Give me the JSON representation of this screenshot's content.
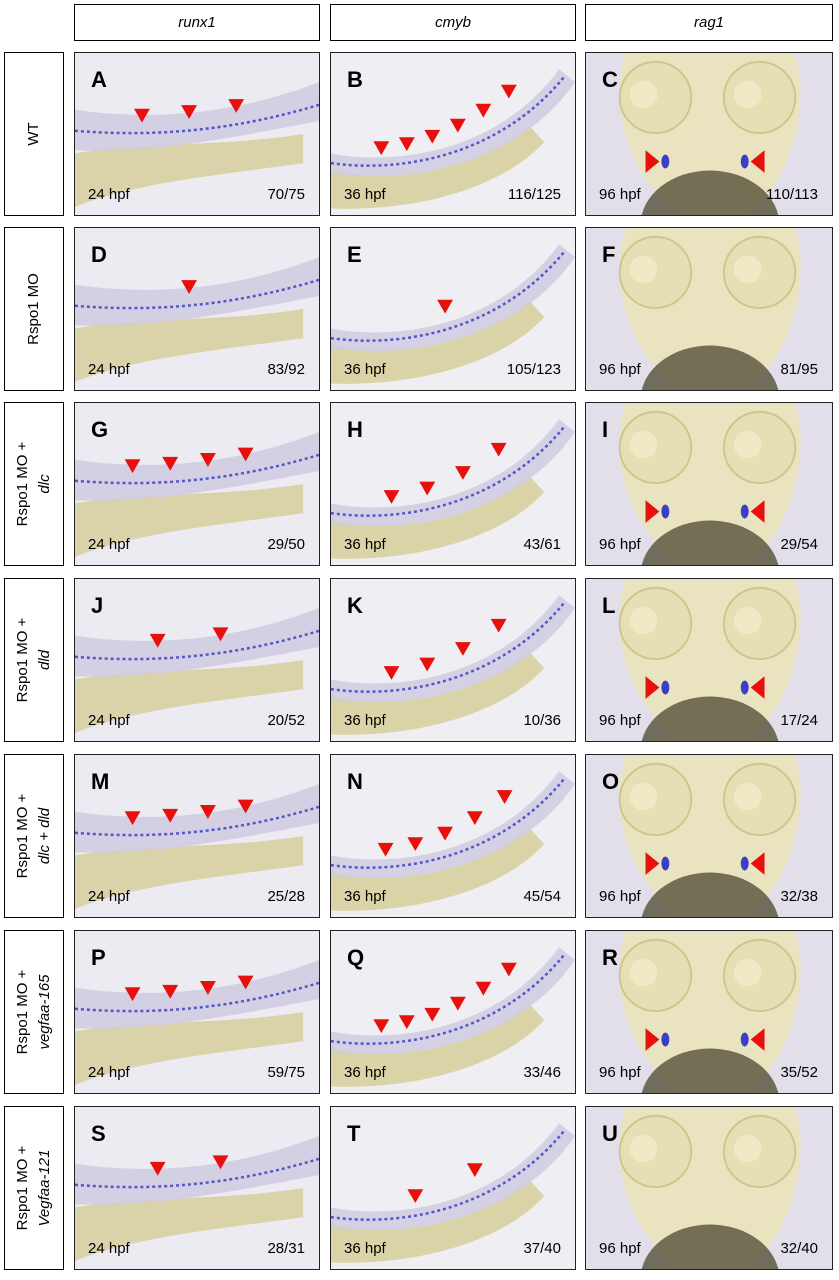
{
  "columns": [
    {
      "label": "runx1"
    },
    {
      "label": "cmyb"
    },
    {
      "label": "rag1"
    }
  ],
  "rows": [
    {
      "line1": "WT",
      "line2": ""
    },
    {
      "line1": "Rspo1 MO",
      "line2": ""
    },
    {
      "line1": "Rspo1 MO +",
      "line2": "dlc"
    },
    {
      "line1": "Rspo1 MO +",
      "line2": "dld"
    },
    {
      "line1": "Rspo1 MO +",
      "line2": "dlc + dld"
    },
    {
      "line1": "Rspo1 MO +",
      "line2": "vegfaa-165"
    },
    {
      "line1": "Rspo1 MO +",
      "line2": "Vegfaa-121"
    }
  ],
  "panels": [
    [
      {
        "letter": "A",
        "stage": "24 hpf",
        "count": "70/75",
        "arrows": 3
      },
      {
        "letter": "B",
        "stage": "36 hpf",
        "count": "116/125",
        "arrows": 6
      },
      {
        "letter": "C",
        "stage": "96 hpf",
        "count": "110/113",
        "arrows": 2
      }
    ],
    [
      {
        "letter": "D",
        "stage": "24 hpf",
        "count": "83/92",
        "arrows": 1
      },
      {
        "letter": "E",
        "stage": "36 hpf",
        "count": "105/123",
        "arrows": 1
      },
      {
        "letter": "F",
        "stage": "96 hpf",
        "count": "81/95",
        "arrows": 0
      }
    ],
    [
      {
        "letter": "G",
        "stage": "24 hpf",
        "count": "29/50",
        "arrows": 4
      },
      {
        "letter": "H",
        "stage": "36 hpf",
        "count": "43/61",
        "arrows": 4
      },
      {
        "letter": "I",
        "stage": "96 hpf",
        "count": "29/54",
        "arrows": 2
      }
    ],
    [
      {
        "letter": "J",
        "stage": "24 hpf",
        "count": "20/52",
        "arrows": 2
      },
      {
        "letter": "K",
        "stage": "36 hpf",
        "count": "10/36",
        "arrows": 4
      },
      {
        "letter": "L",
        "stage": "96 hpf",
        "count": "17/24",
        "arrows": 2
      }
    ],
    [
      {
        "letter": "M",
        "stage": "24 hpf",
        "count": "25/28",
        "arrows": 4
      },
      {
        "letter": "N",
        "stage": "36 hpf",
        "count": "45/54",
        "arrows": 5
      },
      {
        "letter": "O",
        "stage": "96 hpf",
        "count": "32/38",
        "arrows": 2
      }
    ],
    [
      {
        "letter": "P",
        "stage": "24 hpf",
        "count": "59/75",
        "arrows": 4
      },
      {
        "letter": "Q",
        "stage": "36 hpf",
        "count": "33/46",
        "arrows": 6
      },
      {
        "letter": "R",
        "stage": "96 hpf",
        "count": "35/52",
        "arrows": 2
      }
    ],
    [
      {
        "letter": "S",
        "stage": "24 hpf",
        "count": "28/31",
        "arrows": 2
      },
      {
        "letter": "T",
        "stage": "36 hpf",
        "count": "37/40",
        "arrows": 2
      },
      {
        "letter": "U",
        "stage": "96 hpf",
        "count": "32/40",
        "arrows": 0
      }
    ]
  ],
  "colors": {
    "arrow": "#e8100c",
    "stain": "#3b3fc4",
    "yolk": "#d8cfa0",
    "tissue": "#cfcbe0",
    "head": "#e9e3bf"
  }
}
